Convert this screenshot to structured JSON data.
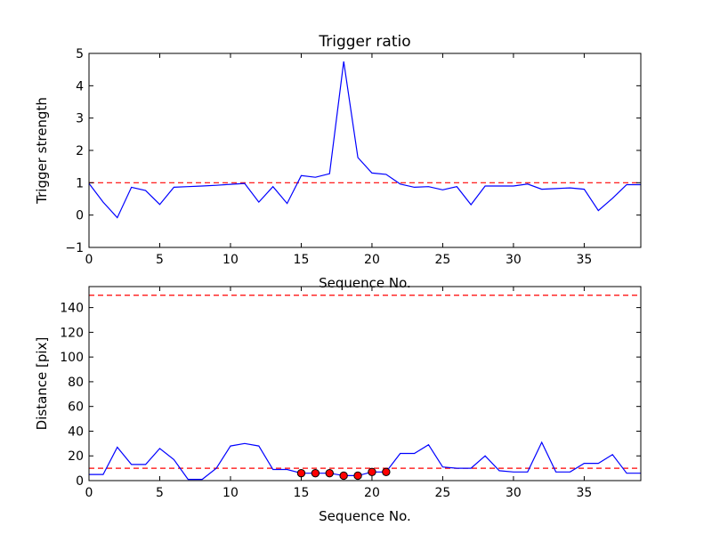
{
  "chart_data": [
    {
      "type": "line",
      "title": "Trigger ratio",
      "xlabel": "Sequence No.",
      "ylabel": "Trigger strength",
      "xlim": [
        0,
        39
      ],
      "ylim": [
        -1,
        5
      ],
      "xticks": [
        0,
        5,
        10,
        15,
        20,
        25,
        30,
        35
      ],
      "yticks": [
        -1,
        0,
        1,
        2,
        3,
        4,
        5
      ],
      "ytick_labels": [
        "−1",
        "0",
        "1",
        "2",
        "3",
        "4",
        "5"
      ],
      "threshold": 1,
      "line_color": "#0000ff",
      "threshold_color": "#ff0000",
      "series": [
        {
          "name": "trigger strength",
          "x": [
            0,
            1,
            2,
            3,
            4,
            5,
            6,
            7,
            8,
            9,
            10,
            11,
            12,
            13,
            14,
            15,
            16,
            17,
            18,
            19,
            20,
            21,
            22,
            23,
            24,
            25,
            26,
            27,
            28,
            29,
            30,
            31,
            32,
            33,
            34,
            35,
            36,
            37,
            38,
            39
          ],
          "values": [
            0.98,
            0.4,
            -0.08,
            0.86,
            0.76,
            0.33,
            0.86,
            0.88,
            0.9,
            0.92,
            0.95,
            0.98,
            0.4,
            0.88,
            0.36,
            1.22,
            1.17,
            1.28,
            4.75,
            1.78,
            1.3,
            1.26,
            0.96,
            0.86,
            0.88,
            0.78,
            0.88,
            0.32,
            0.9,
            0.9,
            0.9,
            0.96,
            0.8,
            0.82,
            0.84,
            0.8,
            0.14,
            0.52,
            0.94,
            0.94
          ]
        }
      ]
    },
    {
      "type": "line",
      "xlabel": "Sequence No.",
      "ylabel": "Distance [pix]",
      "xlim": [
        0,
        39
      ],
      "ylim": [
        0,
        157
      ],
      "xticks": [
        0,
        5,
        10,
        15,
        20,
        25,
        30,
        35
      ],
      "yticks": [
        0,
        20,
        40,
        60,
        80,
        100,
        120,
        140
      ],
      "thresholds": [
        10,
        150
      ],
      "line_color": "#0000ff",
      "threshold_color": "#ff0000",
      "marker_color": "#ff0000",
      "series": [
        {
          "name": "distance",
          "x": [
            0,
            1,
            2,
            3,
            4,
            5,
            6,
            7,
            8,
            9,
            10,
            11,
            12,
            13,
            14,
            15,
            16,
            17,
            18,
            19,
            20,
            21,
            22,
            23,
            24,
            25,
            26,
            27,
            28,
            29,
            30,
            31,
            32,
            33,
            34,
            35,
            36,
            37,
            38,
            39
          ],
          "values": [
            5,
            5,
            27,
            13,
            13,
            26,
            17,
            1,
            1,
            10,
            28,
            30,
            28,
            9,
            9,
            6,
            6,
            6,
            4,
            4,
            7,
            7,
            22,
            22,
            29,
            11,
            10,
            10,
            20,
            8,
            7,
            7,
            31,
            7,
            7,
            14,
            14,
            21,
            6,
            6
          ]
        },
        {
          "name": "triggered points",
          "x": [
            15,
            16,
            17,
            18,
            19,
            20,
            21
          ],
          "values": [
            6,
            6,
            6,
            4,
            4,
            7,
            7
          ]
        }
      ]
    }
  ]
}
